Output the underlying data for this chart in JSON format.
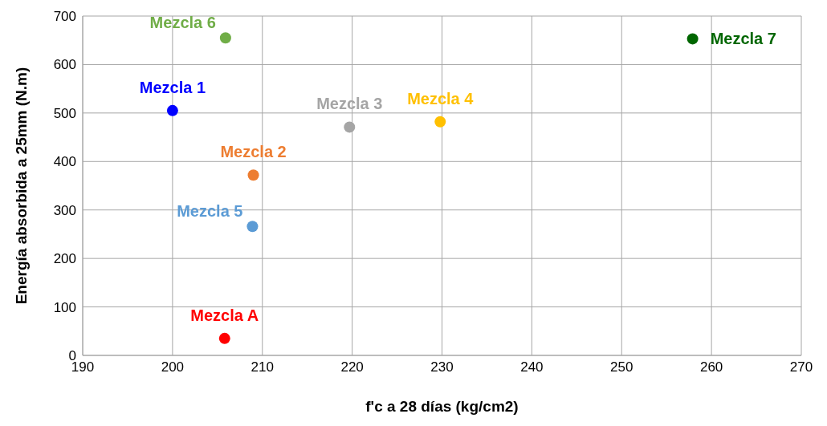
{
  "chart_data": {
    "type": "scatter",
    "xlabel": "f'c a 28 días (kg/cm2)",
    "ylabel": "Energía absorbida a 25mm (N.m)",
    "xlim": [
      190,
      270
    ],
    "xticks": [
      190,
      200,
      210,
      220,
      230,
      240,
      250,
      260,
      270
    ],
    "ylim": [
      0,
      700
    ],
    "yticks": [
      0,
      100,
      200,
      300,
      400,
      500,
      600,
      700
    ],
    "grid": true,
    "legend": false,
    "marker": "circle",
    "series": [
      {
        "name": "Mezcla 1",
        "color": "#0000ff",
        "x": [
          200
        ],
        "values": [
          505
        ]
      },
      {
        "name": "Mezcla 2",
        "color": "#ed7d31",
        "x": [
          209
        ],
        "values": [
          372
        ]
      },
      {
        "name": "Mezcla 3",
        "color": "#a5a5a5",
        "x": [
          219.7
        ],
        "values": [
          471
        ]
      },
      {
        "name": "Mezcla 4",
        "color": "#ffc000",
        "x": [
          229.8
        ],
        "values": [
          482
        ]
      },
      {
        "name": "Mezcla 5",
        "color": "#5b9bd5",
        "x": [
          208.9
        ],
        "values": [
          266
        ]
      },
      {
        "name": "Mezcla 6",
        "color": "#70ad47",
        "x": [
          205.9
        ],
        "values": [
          655
        ]
      },
      {
        "name": "Mezcla 7",
        "color": "#006600",
        "x": [
          257.9
        ],
        "values": [
          653
        ]
      },
      {
        "name": "Mezcla A",
        "color": "#ff0000",
        "x": [
          205.8
        ],
        "values": [
          35
        ]
      }
    ]
  }
}
